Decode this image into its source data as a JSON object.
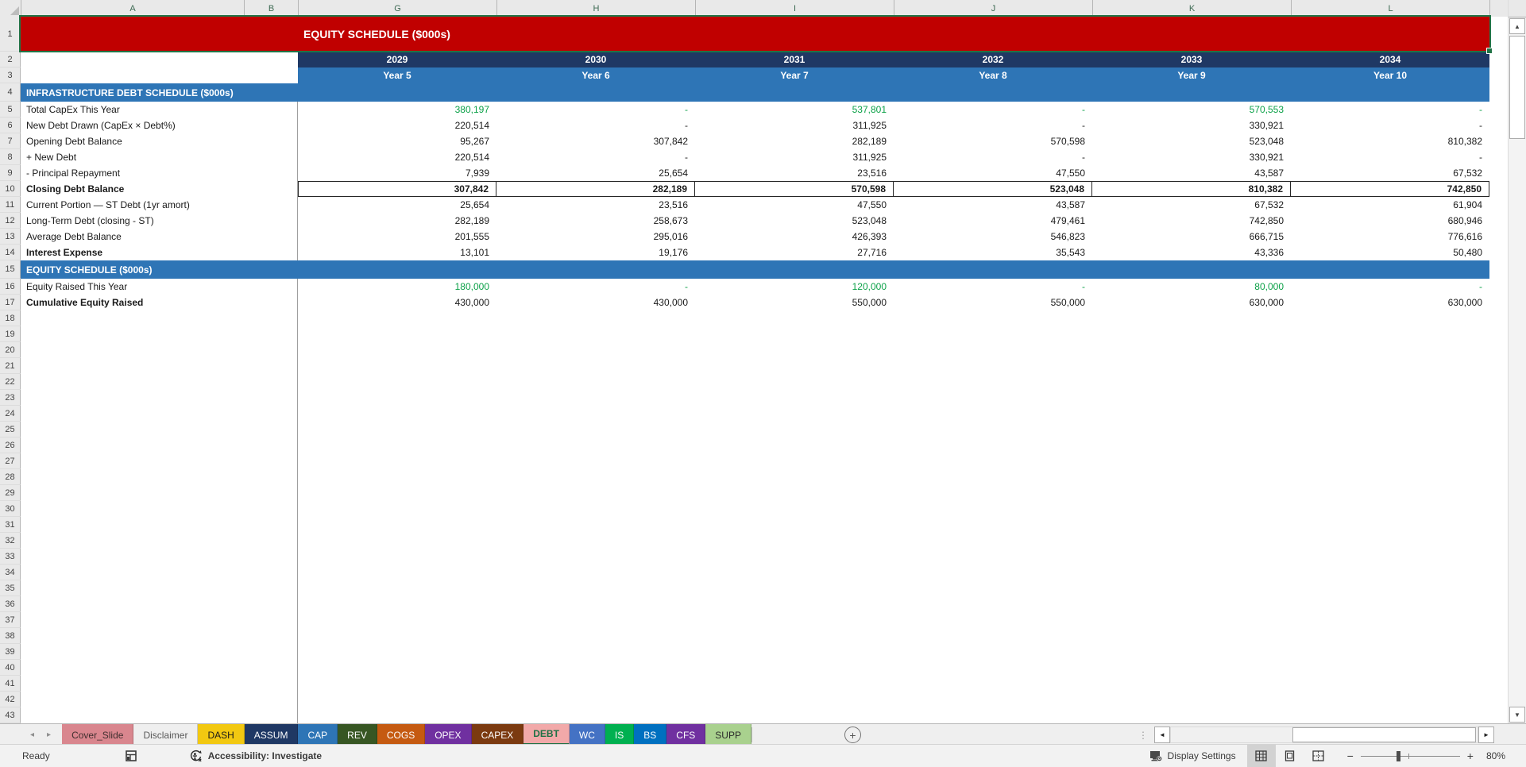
{
  "banner": {
    "title": "EQUITY SCHEDULE ($000s)"
  },
  "colors": {
    "banner_red": "#C00000",
    "navy": "#1F3864",
    "blue": "#2E75B6",
    "green_value": "#0CA148",
    "selection_green": "#217346"
  },
  "grid": {
    "column_letters": [
      "A",
      "B",
      "G",
      "H",
      "I",
      "J",
      "K",
      "L"
    ],
    "years": [
      "2029",
      "2030",
      "2031",
      "2032",
      "2033",
      "2034"
    ],
    "year_labels": [
      "Year 5",
      "Year 6",
      "Year 7",
      "Year 8",
      "Year 9",
      "Year 10"
    ],
    "first_empty_row": 18,
    "last_row": 43,
    "rows": [
      {
        "n": 1,
        "type": "banner"
      },
      {
        "n": 2,
        "type": "years"
      },
      {
        "n": 3,
        "type": "yearlabels"
      },
      {
        "n": 4,
        "type": "section",
        "label": "INFRASTRUCTURE DEBT SCHEDULE ($000s)"
      },
      {
        "n": 5,
        "type": "data",
        "label": "Total CapEx This Year",
        "values": [
          "380,197",
          "-",
          "537,801",
          "-",
          "570,553",
          "-"
        ],
        "value_color": "green"
      },
      {
        "n": 6,
        "type": "data",
        "label": "New Debt Drawn (CapEx × Debt%)",
        "values": [
          "220,514",
          "-",
          "311,925",
          "-",
          "330,921",
          "-"
        ]
      },
      {
        "n": 7,
        "type": "data",
        "label": "Opening Debt Balance",
        "values": [
          "95,267",
          "307,842",
          "282,189",
          "570,598",
          "523,048",
          "810,382"
        ]
      },
      {
        "n": 8,
        "type": "data",
        "label": "+ New Debt",
        "values": [
          "220,514",
          "-",
          "311,925",
          "-",
          "330,921",
          "-"
        ]
      },
      {
        "n": 9,
        "type": "data",
        "label": "- Principal Repayment",
        "values": [
          "7,939",
          "25,654",
          "23,516",
          "47,550",
          "43,587",
          "67,532"
        ]
      },
      {
        "n": 10,
        "type": "data",
        "label": "Closing Debt Balance",
        "values": [
          "307,842",
          "282,189",
          "570,598",
          "523,048",
          "810,382",
          "742,850"
        ],
        "bold": true,
        "boxed": true
      },
      {
        "n": 11,
        "type": "data",
        "label": "Current Portion — ST Debt (1yr amort)",
        "values": [
          "25,654",
          "23,516",
          "47,550",
          "43,587",
          "67,532",
          "61,904"
        ]
      },
      {
        "n": 12,
        "type": "data",
        "label": "Long-Term Debt (closing - ST)",
        "values": [
          "282,189",
          "258,673",
          "523,048",
          "479,461",
          "742,850",
          "680,946"
        ]
      },
      {
        "n": 13,
        "type": "data",
        "label": "Average Debt Balance",
        "values": [
          "201,555",
          "295,016",
          "426,393",
          "546,823",
          "666,715",
          "776,616"
        ]
      },
      {
        "n": 14,
        "type": "data",
        "label": "Interest Expense",
        "values": [
          "13,101",
          "19,176",
          "27,716",
          "35,543",
          "43,336",
          "50,480"
        ],
        "bold_label": true
      },
      {
        "n": 15,
        "type": "section",
        "label": "EQUITY SCHEDULE ($000s)"
      },
      {
        "n": 16,
        "type": "data",
        "label": "Equity Raised This Year",
        "values": [
          "180,000",
          "-",
          "120,000",
          "-",
          "80,000",
          "-"
        ],
        "value_color": "green"
      },
      {
        "n": 17,
        "type": "data",
        "label": "Cumulative Equity Raised",
        "values": [
          "430,000",
          "430,000",
          "550,000",
          "550,000",
          "630,000",
          "630,000"
        ],
        "bold_label": true
      }
    ]
  },
  "tabs": {
    "items": [
      {
        "label": "Cover_Slide",
        "bg": "#D9868E",
        "fg": "#402f2f",
        "active": false
      },
      {
        "label": "Disclaimer",
        "bg": null,
        "fg": "#595959",
        "active": false
      },
      {
        "label": "DASH",
        "bg": "#F2C811",
        "fg": "#1a1a1a",
        "active": false
      },
      {
        "label": "ASSUM",
        "bg": "#1F3864",
        "fg": "#ffffff",
        "active": false
      },
      {
        "label": "CAP",
        "bg": "#2E75B6",
        "fg": "#ffffff",
        "active": false
      },
      {
        "label": "REV",
        "bg": "#375623",
        "fg": "#ffffff",
        "active": false
      },
      {
        "label": "COGS",
        "bg": "#C55A11",
        "fg": "#ffffff",
        "active": false
      },
      {
        "label": "OPEX",
        "bg": "#7030A0",
        "fg": "#ffffff",
        "active": false
      },
      {
        "label": "CAPEX",
        "bg": "#7B3A10",
        "fg": "#ffffff",
        "active": false
      },
      {
        "label": "DEBT",
        "bg": "#F2A9A9",
        "fg": "#1E7145",
        "active": true
      },
      {
        "label": "WC",
        "bg": "#4472C4",
        "fg": "#ffffff",
        "active": false
      },
      {
        "label": "IS",
        "bg": "#00B050",
        "fg": "#ffffff",
        "active": false
      },
      {
        "label": "BS",
        "bg": "#0070C0",
        "fg": "#ffffff",
        "active": false
      },
      {
        "label": "CFS",
        "bg": "#7030A0",
        "fg": "#ffffff",
        "active": false
      },
      {
        "label": "SUPP",
        "bg": "#A9D18E",
        "fg": "#2a2a2a",
        "active": false
      }
    ]
  },
  "icons": {
    "tab_nav_left": "◂",
    "tab_nav_right": "▸",
    "add_sheet": "+",
    "scroll_up": "▲",
    "scroll_down": "▼",
    "scroll_left": "◄",
    "scroll_right": "►",
    "more_dots": "⋮",
    "zoom_out": "−",
    "zoom_in": "+"
  },
  "status": {
    "ready": "Ready",
    "accessibility": "Accessibility: Investigate",
    "display_settings": "Display Settings",
    "zoom_percent": "80%"
  }
}
